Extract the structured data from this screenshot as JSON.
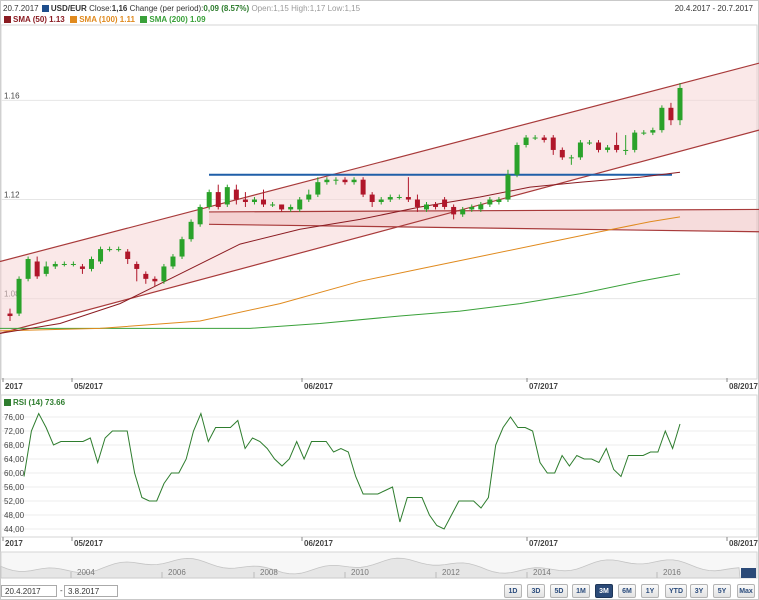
{
  "header": {
    "date": "20.7.2017",
    "symbol": "USD/EUR",
    "close_label": "Close:",
    "close": "1,16",
    "change_label": "Change (per period):",
    "change": "0,09 (8.57%)",
    "open_label": "Open:",
    "open": "1,15",
    "high_label": "High:",
    "high": "1,17",
    "low_label": "Low:",
    "low": "1,15",
    "range": "20.4.2017 - 20.7.2017",
    "symbol_color": "#1f4e8c"
  },
  "legend": {
    "sma50": {
      "label": "SMA (50) 1.13",
      "color": "#8b1c22"
    },
    "sma100": {
      "label": "SMA (100) 1.11",
      "color": "#e08a1e"
    },
    "sma200": {
      "label": "SMA (200) 1.09",
      "color": "#3aa13a"
    }
  },
  "rsi_legend": {
    "label": "RSI (14) 73.66",
    "color": "#2e7d2e"
  },
  "chart_data": [
    {
      "type": "candlestick",
      "title": "USD/EUR",
      "x_ticks": [
        "2017",
        "05/2017",
        "06/2017",
        "07/2017",
        "08/2017"
      ],
      "y_ticks": [
        "1.16",
        "1.12",
        "1.08"
      ],
      "ylim": [
        1.048,
        1.19
      ],
      "candles": [
        [
          1.074,
          1.073,
          1.071,
          1.076
        ],
        [
          1.074,
          1.088,
          1.073,
          1.089
        ],
        [
          1.088,
          1.096,
          1.087,
          1.097
        ],
        [
          1.095,
          1.089,
          1.088,
          1.097
        ],
        [
          1.09,
          1.093,
          1.089,
          1.095
        ],
        [
          1.093,
          1.094,
          1.092,
          1.095
        ],
        [
          1.094,
          1.094,
          1.093,
          1.095
        ],
        [
          1.094,
          1.094,
          1.093,
          1.095
        ],
        [
          1.093,
          1.092,
          1.09,
          1.094
        ],
        [
          1.092,
          1.096,
          1.091,
          1.097
        ],
        [
          1.095,
          1.1,
          1.094,
          1.101
        ],
        [
          1.1,
          1.1,
          1.099,
          1.101
        ],
        [
          1.1,
          1.1,
          1.099,
          1.101
        ],
        [
          1.099,
          1.096,
          1.094,
          1.1
        ],
        [
          1.094,
          1.092,
          1.087,
          1.095
        ],
        [
          1.09,
          1.088,
          1.086,
          1.091
        ],
        [
          1.088,
          1.087,
          1.085,
          1.089
        ],
        [
          1.087,
          1.093,
          1.086,
          1.094
        ],
        [
          1.093,
          1.097,
          1.092,
          1.098
        ],
        [
          1.097,
          1.104,
          1.096,
          1.105
        ],
        [
          1.104,
          1.111,
          1.103,
          1.112
        ],
        [
          1.11,
          1.117,
          1.109,
          1.118
        ],
        [
          1.117,
          1.123,
          1.116,
          1.124
        ],
        [
          1.123,
          1.117,
          1.116,
          1.126
        ],
        [
          1.118,
          1.125,
          1.117,
          1.126
        ],
        [
          1.124,
          1.12,
          1.118,
          1.126
        ],
        [
          1.12,
          1.119,
          1.117,
          1.123
        ],
        [
          1.119,
          1.12,
          1.118,
          1.121
        ],
        [
          1.12,
          1.118,
          1.117,
          1.124
        ],
        [
          1.118,
          1.118,
          1.117,
          1.119
        ],
        [
          1.118,
          1.116,
          1.115,
          1.118
        ],
        [
          1.116,
          1.117,
          1.115,
          1.118
        ],
        [
          1.116,
          1.12,
          1.115,
          1.121
        ],
        [
          1.12,
          1.122,
          1.119,
          1.124
        ],
        [
          1.122,
          1.127,
          1.121,
          1.129
        ],
        [
          1.127,
          1.128,
          1.126,
          1.129
        ],
        [
          1.128,
          1.128,
          1.126,
          1.129
        ],
        [
          1.128,
          1.127,
          1.126,
          1.129
        ],
        [
          1.127,
          1.128,
          1.126,
          1.129
        ],
        [
          1.128,
          1.122,
          1.121,
          1.129
        ],
        [
          1.122,
          1.119,
          1.117,
          1.123
        ],
        [
          1.119,
          1.12,
          1.118,
          1.121
        ],
        [
          1.12,
          1.121,
          1.119,
          1.122
        ],
        [
          1.121,
          1.121,
          1.12,
          1.122
        ],
        [
          1.121,
          1.12,
          1.119,
          1.129
        ],
        [
          1.12,
          1.117,
          1.115,
          1.122
        ],
        [
          1.116,
          1.118,
          1.115,
          1.119
        ],
        [
          1.118,
          1.117,
          1.116,
          1.119
        ],
        [
          1.12,
          1.117,
          1.116,
          1.121
        ],
        [
          1.117,
          1.114,
          1.112,
          1.118
        ],
        [
          1.114,
          1.116,
          1.113,
          1.117
        ],
        [
          1.116,
          1.117,
          1.115,
          1.118
        ],
        [
          1.116,
          1.118,
          1.115,
          1.119
        ],
        [
          1.118,
          1.12,
          1.117,
          1.121
        ],
        [
          1.119,
          1.12,
          1.118,
          1.121
        ],
        [
          1.12,
          1.13,
          1.119,
          1.132
        ],
        [
          1.13,
          1.142,
          1.129,
          1.143
        ],
        [
          1.142,
          1.145,
          1.141,
          1.146
        ],
        [
          1.145,
          1.145,
          1.144,
          1.146
        ],
        [
          1.145,
          1.144,
          1.143,
          1.146
        ],
        [
          1.145,
          1.14,
          1.138,
          1.146
        ],
        [
          1.14,
          1.137,
          1.136,
          1.141
        ],
        [
          1.137,
          1.137,
          1.134,
          1.138
        ],
        [
          1.137,
          1.143,
          1.136,
          1.144
        ],
        [
          1.143,
          1.143,
          1.142,
          1.144
        ],
        [
          1.143,
          1.14,
          1.139,
          1.144
        ],
        [
          1.14,
          1.141,
          1.139,
          1.142
        ],
        [
          1.142,
          1.14,
          1.139,
          1.147
        ],
        [
          1.14,
          1.14,
          1.138,
          1.146
        ],
        [
          1.14,
          1.147,
          1.139,
          1.148
        ],
        [
          1.147,
          1.147,
          1.146,
          1.148
        ],
        [
          1.147,
          1.148,
          1.146,
          1.149
        ],
        [
          1.148,
          1.157,
          1.147,
          1.158
        ],
        [
          1.157,
          1.152,
          1.15,
          1.159
        ],
        [
          1.152,
          1.165,
          1.15,
          1.167
        ]
      ],
      "sma50": [
        [
          0,
          1.066
        ],
        [
          60,
          1.07
        ],
        [
          120,
          1.078
        ],
        [
          180,
          1.09
        ],
        [
          240,
          1.102
        ],
        [
          300,
          1.108
        ],
        [
          360,
          1.112
        ],
        [
          420,
          1.117
        ],
        [
          480,
          1.121
        ],
        [
          530,
          1.125
        ],
        [
          580,
          1.127
        ],
        [
          640,
          1.129
        ],
        [
          680,
          1.131
        ]
      ],
      "sma100": [
        [
          0,
          1.067
        ],
        [
          100,
          1.068
        ],
        [
          200,
          1.071
        ],
        [
          280,
          1.078
        ],
        [
          360,
          1.087
        ],
        [
          420,
          1.092
        ],
        [
          480,
          1.097
        ],
        [
          540,
          1.102
        ],
        [
          600,
          1.107
        ],
        [
          650,
          1.111
        ],
        [
          680,
          1.113
        ]
      ],
      "sma200": [
        [
          0,
          1.068
        ],
        [
          150,
          1.068
        ],
        [
          250,
          1.068
        ],
        [
          320,
          1.07
        ],
        [
          400,
          1.073
        ],
        [
          460,
          1.075
        ],
        [
          520,
          1.078
        ],
        [
          580,
          1.082
        ],
        [
          640,
          1.087
        ],
        [
          680,
          1.09
        ]
      ],
      "trendlines": [
        {
          "kind": "channel-upper",
          "from": [
            0,
            1.095
          ],
          "to": [
            759,
            1.175
          ]
        },
        {
          "kind": "channel-lower",
          "from": [
            0,
            1.066
          ],
          "to": [
            759,
            1.148
          ]
        },
        {
          "kind": "resistance",
          "from": [
            209,
            1.13
          ],
          "to": [
            672,
            1.13
          ],
          "color": "#1f5fa8"
        },
        {
          "kind": "band-upper",
          "from": [
            209,
            1.115
          ],
          "to": [
            759,
            1.116
          ]
        },
        {
          "kind": "band-lower",
          "from": [
            209,
            1.11
          ],
          "to": [
            759,
            1.107
          ]
        }
      ]
    },
    {
      "type": "line",
      "title": "RSI (14)",
      "ylim": [
        42,
        78
      ],
      "y_ticks": [
        "76,00",
        "72,00",
        "68,00",
        "64,00",
        "60,00",
        "56,00",
        "52,00",
        "48,00",
        "44,00"
      ],
      "values": [
        59,
        72,
        77,
        73,
        68,
        69,
        69,
        69,
        69,
        70,
        63,
        70,
        72,
        72,
        72,
        60,
        53,
        52,
        52,
        57,
        60,
        60,
        64,
        72,
        77,
        69,
        73,
        73,
        73,
        75,
        67,
        70,
        69,
        67,
        64,
        62,
        64,
        69,
        64,
        69,
        69,
        69,
        66,
        67,
        66,
        59,
        54,
        54,
        54,
        55,
        56,
        46,
        53,
        53,
        53,
        48,
        45,
        44,
        48,
        52,
        52,
        52,
        50,
        53,
        68,
        73,
        76,
        73,
        73,
        72,
        63,
        60,
        60,
        65,
        62,
        65,
        64,
        64,
        63,
        67,
        61,
        59,
        65,
        65,
        65,
        66,
        66,
        72,
        67,
        74
      ],
      "x_ticks": [
        "2017",
        "05/2017",
        "06/2017",
        "07/2017",
        "08/2017"
      ]
    }
  ],
  "navigator": {
    "years": [
      "2004",
      "2006",
      "2008",
      "2010",
      "2012",
      "2014",
      "2016"
    ]
  },
  "range_inputs": {
    "from": "20.4.2017",
    "separator": "-",
    "to": "3.8.2017"
  },
  "range_buttons": [
    "1D",
    "3D",
    "5D",
    "1M",
    "3M",
    "6M",
    "1Y",
    "YTD",
    "3Y",
    "5Y",
    "Max"
  ],
  "active_range": "3M"
}
